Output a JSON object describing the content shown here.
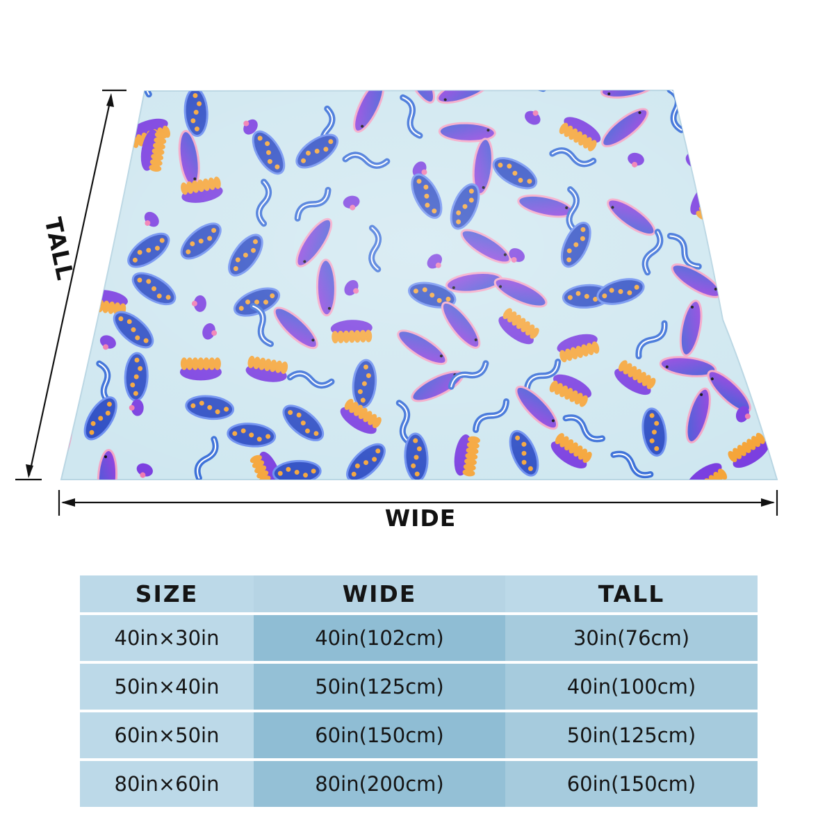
{
  "product": {
    "pattern_colors": [
      "#cfe7f0",
      "#3a6fd8",
      "#7b3fe0",
      "#f07ab0",
      "#f5a53a",
      "#f4a6c6",
      "#2f4fc4"
    ]
  },
  "dimensions": {
    "wide_label": "WIDE",
    "tall_label": "TALL"
  },
  "size_table": {
    "headers": [
      "SIZE",
      "WIDE",
      "TALL"
    ],
    "rows": [
      {
        "size": "40in×30in",
        "wide": "40in(102cm)",
        "tall": "30in(76cm)"
      },
      {
        "size": "50in×40in",
        "wide": "50in(125cm)",
        "tall": "40in(100cm)"
      },
      {
        "size": "60in×50in",
        "wide": "60in(150cm)",
        "tall": "50in(125cm)"
      },
      {
        "size": "80in×60in",
        "wide": "80in(200cm)",
        "tall": "60in(150cm)"
      }
    ]
  }
}
